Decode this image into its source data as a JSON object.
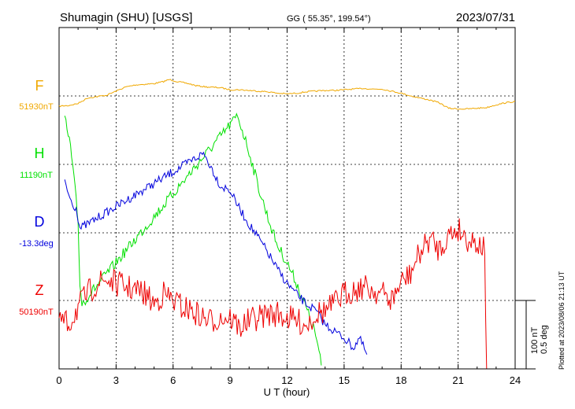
{
  "header": {
    "station": "Shumagin (SHU)  [USGS]",
    "coords": "GG ( 55.35°, 199.54°)",
    "date": "2023/07/31"
  },
  "footer": {
    "plotted": "Plotted at 2023/08/06 21:13 UT"
  },
  "chart_data": {
    "type": "line",
    "xlabel": "U T (hour)",
    "xlim": [
      0,
      24
    ],
    "xticks": [
      "0",
      "3",
      "6",
      "9",
      "12",
      "15",
      "18",
      "21",
      "24"
    ],
    "scale_bar": {
      "nt": "100 nT",
      "deg": "0.5 deg"
    },
    "colors": {
      "F": "#f0a800",
      "H": "#00e000",
      "D": "#0000dd",
      "Z": "#ee0000"
    },
    "series": [
      {
        "name": "F",
        "baseline": "51930nT",
        "points": [
          [
            0,
            51930
          ],
          [
            0.5,
            51931
          ],
          [
            1.0,
            51934
          ],
          [
            1.5,
            51942
          ],
          [
            2.0,
            51944
          ],
          [
            2.5,
            51946
          ],
          [
            3.0,
            51952
          ],
          [
            3.5,
            51958
          ],
          [
            4.0,
            51961
          ],
          [
            4.5,
            51962
          ],
          [
            5.0,
            51963
          ],
          [
            5.5,
            51966
          ],
          [
            5.8,
            51969
          ],
          [
            6.2,
            51966
          ],
          [
            6.8,
            51963
          ],
          [
            7.2,
            51960
          ],
          [
            7.8,
            51958
          ],
          [
            8.5,
            51957
          ],
          [
            9.0,
            51954
          ],
          [
            9.5,
            51954
          ],
          [
            10.0,
            51953
          ],
          [
            10.5,
            51952
          ],
          [
            11.0,
            51951
          ],
          [
            11.5,
            51949
          ],
          [
            12.0,
            51948
          ],
          [
            12.5,
            51949
          ],
          [
            13.0,
            51951
          ],
          [
            13.5,
            51952
          ],
          [
            14.0,
            51953
          ],
          [
            14.5,
            51953
          ],
          [
            15.0,
            51954
          ],
          [
            15.5,
            51955
          ],
          [
            16.0,
            51956
          ],
          [
            16.5,
            51955
          ],
          [
            17.0,
            51955
          ],
          [
            17.5,
            51952
          ],
          [
            18.0,
            51949
          ],
          [
            18.5,
            51945
          ],
          [
            19.0,
            51942
          ],
          [
            19.5,
            51939
          ],
          [
            20.0,
            51935
          ],
          [
            20.5,
            51927
          ],
          [
            21.0,
            51926
          ],
          [
            21.5,
            51926
          ],
          [
            22.0,
            51927
          ],
          [
            22.5,
            51928
          ],
          [
            23.0,
            51932
          ],
          [
            23.5,
            51935
          ],
          [
            24.0,
            51937
          ]
        ]
      },
      {
        "name": "H",
        "baseline": "11190nT",
        "points": [
          [
            0.3,
            11270
          ],
          [
            0.6,
            11230
          ],
          [
            0.9,
            11150
          ],
          [
            1.0,
            11120
          ],
          [
            1.1,
            11030
          ],
          [
            1.2,
            11000
          ],
          [
            9.4,
            11275
          ],
          [
            10.0,
            11222
          ],
          [
            10.5,
            11170
          ],
          [
            11.0,
            11125
          ],
          [
            11.5,
            11085
          ],
          [
            12.0,
            11060
          ],
          [
            12.5,
            11030
          ],
          [
            13.0,
            10995
          ],
          [
            13.5,
            10955
          ],
          [
            13.8,
            10910
          ]
        ]
      },
      {
        "name": "D",
        "baseline": "-13.3deg",
        "points": [
          [
            0.3,
            -12.85
          ],
          [
            0.5,
            -12.95
          ],
          [
            0.7,
            -13.02
          ],
          [
            0.9,
            -13.05
          ],
          [
            1.0,
            -13.12
          ],
          [
            1.1,
            -13.2
          ],
          [
            7.6,
            -12.65
          ],
          [
            8.0,
            -12.75
          ],
          [
            8.5,
            -12.89
          ],
          [
            9.0,
            -12.92
          ],
          [
            9.2,
            -12.98
          ],
          [
            9.6,
            -13.08
          ],
          [
            10.0,
            -13.17
          ],
          [
            10.5,
            -13.27
          ],
          [
            11.0,
            -13.38
          ],
          [
            11.5,
            -13.5
          ],
          [
            12.0,
            -13.6
          ],
          [
            12.5,
            -13.68
          ],
          [
            13.0,
            -13.75
          ],
          [
            13.5,
            -13.8
          ],
          [
            14.0,
            -13.9
          ],
          [
            14.5,
            -13.95
          ],
          [
            15.0,
            -14.0
          ],
          [
            15.5,
            -14.07
          ],
          [
            15.8,
            -14.0
          ],
          [
            16.2,
            -14.12
          ]
        ]
      },
      {
        "name": "Z",
        "baseline": "50190nT",
        "points": [
          [
            0,
            50175
          ],
          [
            0.5,
            50170
          ],
          [
            1.0,
            50195
          ],
          [
            1.5,
            50215
          ],
          [
            2.0,
            50230
          ],
          [
            2.5,
            50235
          ],
          [
            3.0,
            50230
          ],
          [
            3.5,
            50225
          ],
          [
            4.0,
            50220
          ],
          [
            4.5,
            50215
          ],
          [
            5.0,
            50200
          ],
          [
            5.5,
            50215
          ],
          [
            6.0,
            50205
          ],
          [
            6.5,
            50195
          ],
          [
            7.0,
            50190
          ],
          [
            7.5,
            50180
          ],
          [
            8.0,
            50175
          ],
          [
            8.5,
            50180
          ],
          [
            9.0,
            50180
          ],
          [
            9.5,
            50165
          ],
          [
            10.0,
            50175
          ],
          [
            10.5,
            50180
          ],
          [
            11.0,
            50185
          ],
          [
            11.5,
            50185
          ],
          [
            12.0,
            50180
          ],
          [
            12.5,
            50175
          ],
          [
            13.0,
            50170
          ],
          [
            13.5,
            50185
          ],
          [
            14.0,
            50190
          ],
          [
            14.5,
            50200
          ],
          [
            15.0,
            50215
          ],
          [
            15.5,
            50220
          ],
          [
            16.0,
            50225
          ],
          [
            16.5,
            50220
          ],
          [
            17.0,
            50215
          ],
          [
            17.5,
            50205
          ],
          [
            18.0,
            50230
          ],
          [
            18.5,
            50245
          ],
          [
            19.0,
            50275
          ],
          [
            19.5,
            50295
          ],
          [
            20.0,
            50280
          ],
          [
            20.5,
            50300
          ],
          [
            21.0,
            50310
          ],
          [
            21.5,
            50295
          ],
          [
            22.0,
            50290
          ],
          [
            22.4,
            50280
          ],
          [
            22.5,
            50100
          ]
        ]
      }
    ]
  }
}
